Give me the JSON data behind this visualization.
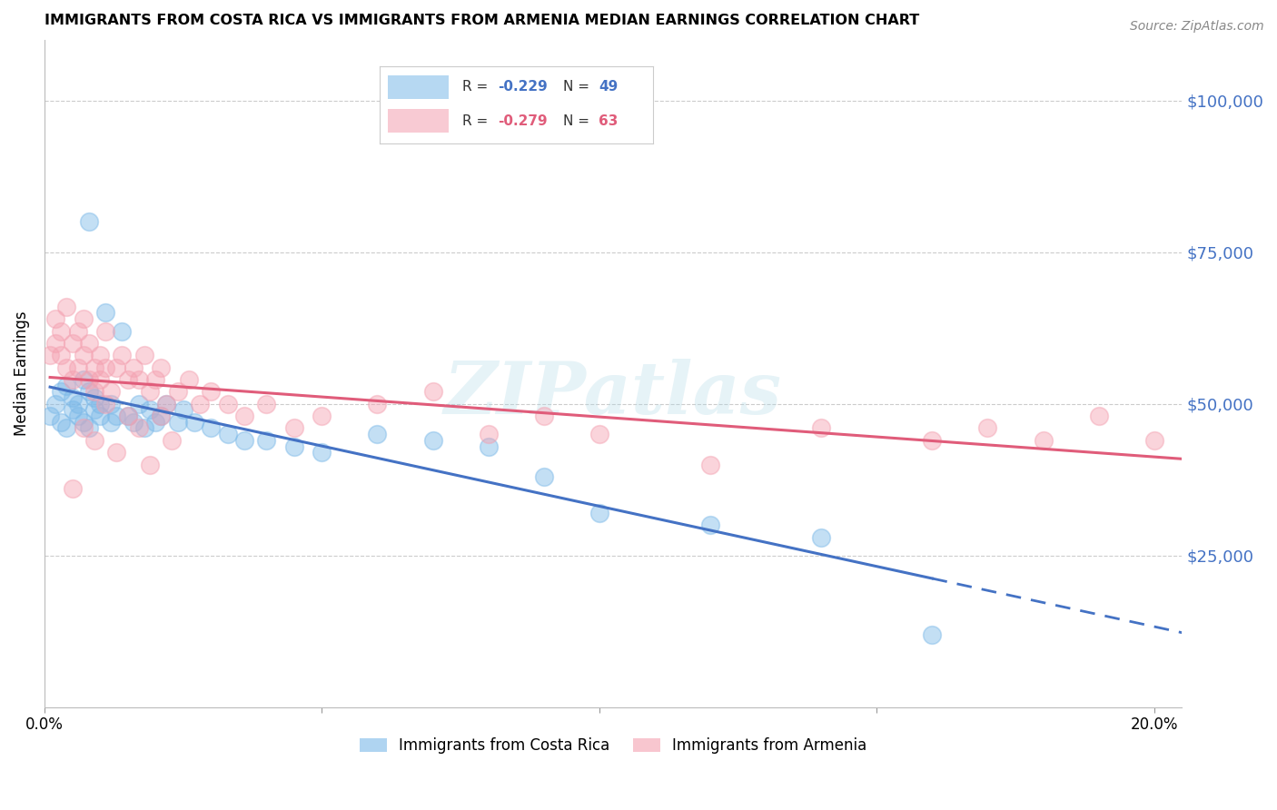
{
  "title": "IMMIGRANTS FROM COSTA RICA VS IMMIGRANTS FROM ARMENIA MEDIAN EARNINGS CORRELATION CHART",
  "source": "Source: ZipAtlas.com",
  "ylabel": "Median Earnings",
  "xlabel": "",
  "xlim": [
    0.0,
    0.205
  ],
  "ylim": [
    0,
    110000
  ],
  "yticks": [
    0,
    25000,
    50000,
    75000,
    100000
  ],
  "ytick_labels": [
    "",
    "$25,000",
    "$50,000",
    "$75,000",
    "$100,000"
  ],
  "xticks": [
    0.0,
    0.05,
    0.1,
    0.15,
    0.2
  ],
  "xtick_labels": [
    "0.0%",
    "",
    "",
    "",
    "20.0%"
  ],
  "watermark": "ZIPatlas",
  "costa_rica_color": "#7ab8e8",
  "armenia_color": "#f4a0b0",
  "costa_rica_line_color": "#4472c4",
  "armenia_line_color": "#e05c7a",
  "costa_rica_x": [
    0.001,
    0.002,
    0.003,
    0.003,
    0.004,
    0.004,
    0.005,
    0.005,
    0.006,
    0.006,
    0.007,
    0.007,
    0.008,
    0.008,
    0.009,
    0.009,
    0.01,
    0.01,
    0.011,
    0.012,
    0.012,
    0.013,
    0.014,
    0.015,
    0.016,
    0.017,
    0.018,
    0.019,
    0.02,
    0.021,
    0.022,
    0.024,
    0.025,
    0.027,
    0.03,
    0.033,
    0.036,
    0.04,
    0.045,
    0.05,
    0.06,
    0.07,
    0.08,
    0.09,
    0.1,
    0.12,
    0.14,
    0.16,
    0.008
  ],
  "costa_rica_y": [
    48000,
    50000,
    47000,
    52000,
    46000,
    53000,
    49000,
    51000,
    48000,
    50000,
    47000,
    54000,
    46000,
    52000,
    49000,
    51000,
    48000,
    50000,
    65000,
    47000,
    50000,
    48000,
    62000,
    48000,
    47000,
    50000,
    46000,
    49000,
    47000,
    48000,
    50000,
    47000,
    49000,
    47000,
    46000,
    45000,
    44000,
    44000,
    43000,
    42000,
    45000,
    44000,
    43000,
    38000,
    32000,
    30000,
    28000,
    12000,
    80000
  ],
  "armenia_x": [
    0.001,
    0.002,
    0.002,
    0.003,
    0.003,
    0.004,
    0.004,
    0.005,
    0.005,
    0.006,
    0.006,
    0.007,
    0.007,
    0.008,
    0.008,
    0.009,
    0.009,
    0.01,
    0.01,
    0.011,
    0.011,
    0.012,
    0.013,
    0.014,
    0.015,
    0.016,
    0.017,
    0.018,
    0.019,
    0.02,
    0.021,
    0.022,
    0.024,
    0.026,
    0.028,
    0.03,
    0.033,
    0.036,
    0.04,
    0.045,
    0.05,
    0.06,
    0.07,
    0.08,
    0.09,
    0.1,
    0.12,
    0.14,
    0.16,
    0.17,
    0.18,
    0.19,
    0.2,
    0.005,
    0.007,
    0.009,
    0.011,
    0.013,
    0.015,
    0.017,
    0.019,
    0.021,
    0.023
  ],
  "armenia_y": [
    58000,
    60000,
    64000,
    58000,
    62000,
    66000,
    56000,
    60000,
    54000,
    62000,
    56000,
    58000,
    64000,
    54000,
    60000,
    56000,
    52000,
    58000,
    54000,
    56000,
    62000,
    52000,
    56000,
    58000,
    54000,
    56000,
    54000,
    58000,
    52000,
    54000,
    56000,
    50000,
    52000,
    54000,
    50000,
    52000,
    50000,
    48000,
    50000,
    46000,
    48000,
    50000,
    52000,
    45000,
    48000,
    45000,
    40000,
    46000,
    44000,
    46000,
    44000,
    48000,
    44000,
    36000,
    46000,
    44000,
    50000,
    42000,
    48000,
    46000,
    40000,
    48000,
    44000
  ],
  "cr_line_x_start": 0.001,
  "cr_line_x_end": 0.16,
  "cr_line_x_dash_end": 0.205,
  "arm_line_x_start": 0.001,
  "arm_line_x_end": 0.205
}
